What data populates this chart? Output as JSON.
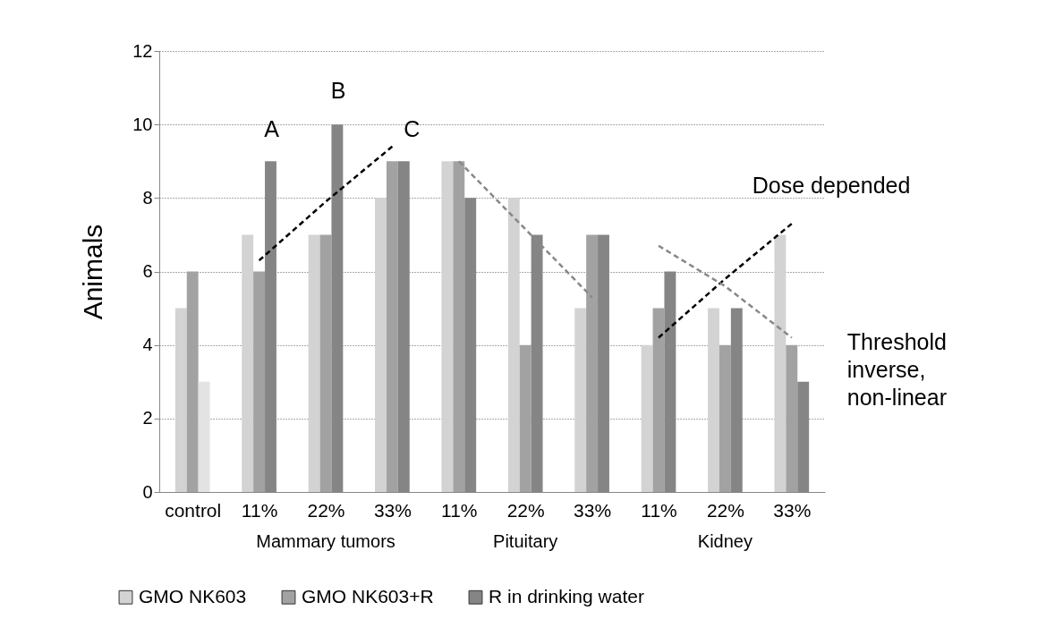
{
  "chart_data": {
    "type": "bar",
    "ylabel": "Animals",
    "categories": [
      "control",
      "11%",
      "22%",
      "33%",
      "11%",
      "22%",
      "33%",
      "11%",
      "22%",
      "33%"
    ],
    "series": [
      {
        "name": "GMO NK603",
        "color": "#d3d3d3",
        "values": [
          5,
          7,
          7,
          8,
          9,
          8,
          5,
          4,
          5,
          7
        ]
      },
      {
        "name": "GMO NK603+R",
        "color": "#a2a2a2",
        "values": [
          6,
          6,
          7,
          9,
          9,
          4,
          7,
          5,
          4,
          4
        ]
      },
      {
        "name": "R in drinking water",
        "color": "#858585",
        "colors": [
          "#e3e3e3",
          "#858585",
          "#858585",
          "#858585",
          "#858585",
          "#858585",
          "#858585",
          "#858585",
          "#858585",
          "#858585"
        ],
        "values": [
          3,
          9,
          10,
          9,
          8,
          7,
          7,
          6,
          5,
          3
        ]
      },
      {
        "type": "line",
        "color": "#000000",
        "line_style": "dashed",
        "values": [
          null,
          6.3,
          7.9,
          9.4,
          null,
          null,
          null,
          null,
          null,
          null
        ]
      },
      {
        "type": "line",
        "color": "#888888",
        "line_style": "dashed",
        "values": [
          null,
          null,
          null,
          null,
          9.0,
          7.15,
          5.3,
          null,
          null,
          null
        ]
      },
      {
        "type": "line",
        "color": "#000000",
        "line_style": "dashed",
        "values": [
          null,
          null,
          null,
          null,
          null,
          null,
          null,
          4.2,
          5.8,
          7.3
        ]
      },
      {
        "type": "line",
        "color": "#888888",
        "line_style": "dashed",
        "values": [
          null,
          null,
          null,
          null,
          null,
          null,
          null,
          6.7,
          5.6,
          4.2
        ]
      }
    ],
    "annotations": [
      "Mammary tumors",
      "Pituitary",
      "Kidney",
      "A",
      "B",
      "C",
      "Dose depended",
      "Threshold inverse, non-linear"
    ],
    "ylim": [
      0,
      12
    ],
    "yticks": [
      0,
      2,
      4,
      6,
      8,
      10,
      12
    ],
    "grid": "y",
    "legend": "bottom",
    "marker": "none"
  }
}
